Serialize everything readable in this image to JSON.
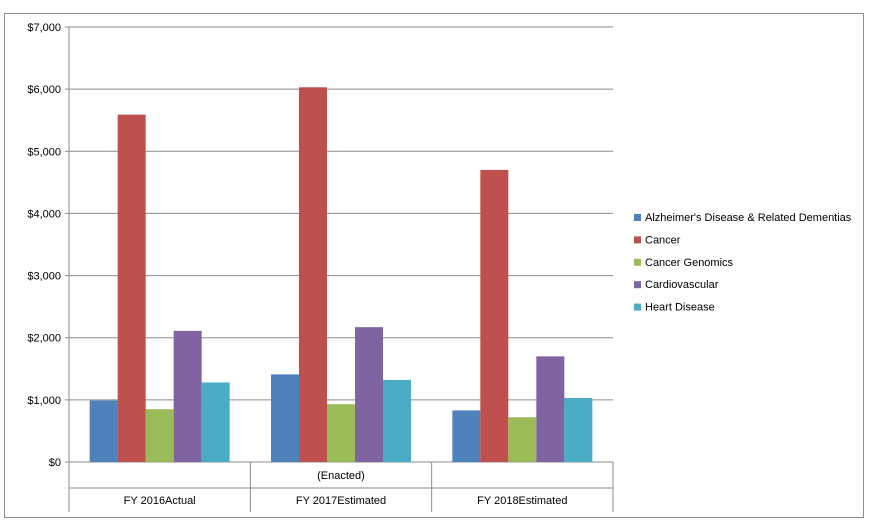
{
  "chart_data": {
    "type": "bar",
    "title": "",
    "xlabel": "",
    "ylabel": "",
    "ylim": [
      0,
      7000
    ],
    "yticks": [
      "$0",
      "$1,000",
      "$2,000",
      "$3,000",
      "$4,000",
      "$5,000",
      "$6,000",
      "$7,000"
    ],
    "grid": true,
    "legend_position": "right",
    "categories": [
      {
        "top": "",
        "bottom": "FY 2016Actual"
      },
      {
        "top": "(Enacted)",
        "bottom": "FY 2017Estimated"
      },
      {
        "top": "",
        "bottom": "FY 2018Estimated"
      }
    ],
    "series": [
      {
        "name": "Alzheimer's Disease & Related Dementias",
        "color": "#4f81bd",
        "values": [
          990,
          1410,
          830
        ]
      },
      {
        "name": "Cancer",
        "color": "#c0504d",
        "values": [
          5590,
          6030,
          4700
        ]
      },
      {
        "name": "Cancer Genomics",
        "color": "#9bbb59",
        "values": [
          850,
          930,
          720
        ]
      },
      {
        "name": "Cardiovascular",
        "color": "#8064a2",
        "values": [
          2110,
          2170,
          1700
        ]
      },
      {
        "name": "Heart Disease",
        "color": "#4bacc6",
        "values": [
          1280,
          1320,
          1030
        ]
      }
    ]
  }
}
